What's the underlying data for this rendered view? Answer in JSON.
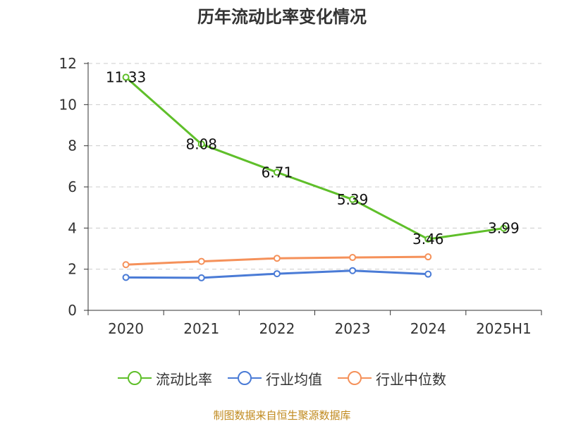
{
  "title": "历年流动比率变化情况",
  "source": "制图数据来自恒生聚源数据库",
  "colors": {
    "current_ratio": "#5fbf2a",
    "industry_avg": "#4a7bd6",
    "industry_median": "#f5915a",
    "grid": "#cccccc",
    "axis": "#333333"
  },
  "chart_data": {
    "type": "line",
    "categories": [
      "2020",
      "2021",
      "2022",
      "2023",
      "2024",
      "2025H1"
    ],
    "ylim": [
      0,
      12
    ],
    "yticks": [
      "0",
      "2",
      "4",
      "6",
      "8",
      "10",
      "12"
    ],
    "grid": true,
    "legend_position": "bottom",
    "series": [
      {
        "name": "流动比率",
        "values": [
          11.33,
          8.08,
          6.71,
          5.39,
          3.46,
          3.99
        ],
        "labels": [
          "11.33",
          "8.08",
          "6.71",
          "5.39",
          "3.46",
          "3.99"
        ],
        "show_labels": true
      },
      {
        "name": "行业均值",
        "values": [
          1.6,
          1.58,
          1.78,
          1.93,
          1.76,
          null
        ],
        "show_labels": false
      },
      {
        "name": "行业中位数",
        "values": [
          2.22,
          2.38,
          2.53,
          2.57,
          2.6,
          null
        ],
        "show_labels": false
      }
    ]
  }
}
